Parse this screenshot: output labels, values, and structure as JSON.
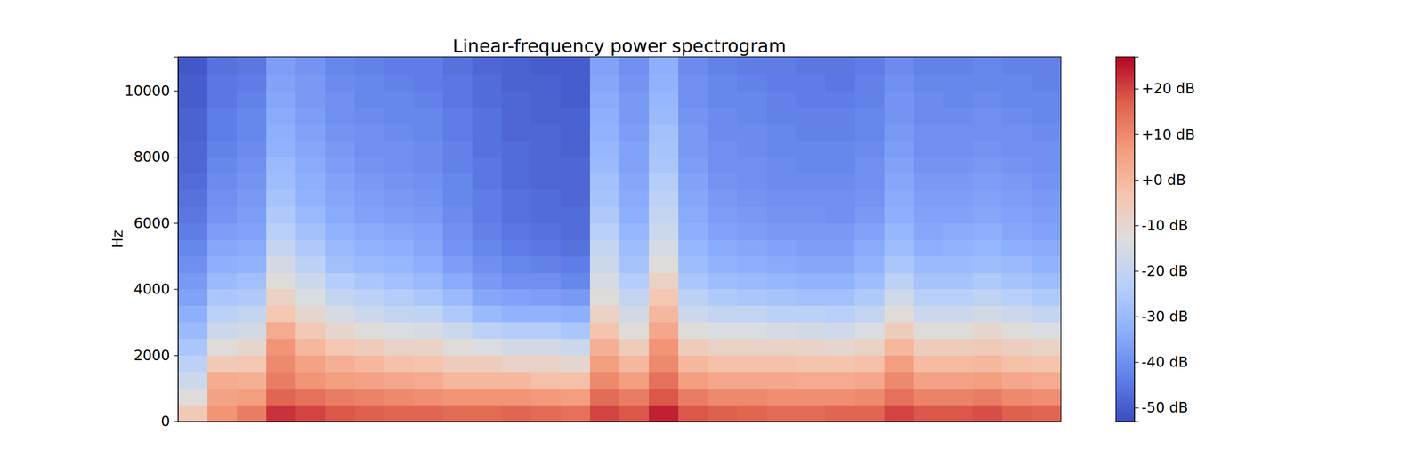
{
  "chart_data": {
    "type": "heatmap",
    "title": "Linear-frequency power spectrogram",
    "y_label": "Hz",
    "xlim": [
      0,
      30
    ],
    "ylim": [
      0,
      11025
    ],
    "yticks": [
      0,
      2000,
      4000,
      6000,
      8000,
      10000
    ],
    "tick_labels": "y",
    "y_bins": [
      0,
      500,
      1000,
      1500,
      2000,
      2500,
      3000,
      3500,
      4000,
      4500,
      5000,
      5500,
      6000,
      6500,
      7000,
      7500,
      8000,
      8500,
      9000,
      9500,
      10000,
      10500,
      11025
    ],
    "color_range": [
      -53,
      27
    ],
    "color_ticks": [
      {
        "value": -50,
        "label": "-50 dB"
      },
      {
        "value": -40,
        "label": "-40 dB"
      },
      {
        "value": -30,
        "label": "-30 dB"
      },
      {
        "value": -20,
        "label": "-20 dB"
      },
      {
        "value": -10,
        "label": "-10 dB"
      },
      {
        "value": 0,
        "label": "+0 dB"
      },
      {
        "value": 10,
        "label": "+10 dB"
      },
      {
        "value": 20,
        "label": "+20 dB"
      }
    ],
    "values": [
      [
        -5,
        -12,
        -18,
        -22,
        -26,
        -30,
        -33,
        -36,
        -38,
        -40,
        -42,
        -44,
        -45,
        -46,
        -47,
        -48,
        -48,
        -49,
        -49,
        -50,
        -50,
        -51
      ],
      [
        8,
        5,
        3,
        -5,
        -12,
        -18,
        -22,
        -26,
        -30,
        -33,
        -35,
        -37,
        -39,
        -40,
        -41,
        -42,
        -43,
        -44,
        -44,
        -45,
        -45,
        -46
      ],
      [
        12,
        6,
        2,
        -4,
        -10,
        -16,
        -20,
        -25,
        -28,
        -32,
        -34,
        -36,
        -37,
        -38,
        -39,
        -40,
        -41,
        -42,
        -42,
        -43,
        -44,
        -45
      ],
      [
        22,
        16,
        12,
        10,
        8,
        3,
        -4,
        -8,
        -12,
        -16,
        -20,
        -23,
        -25,
        -27,
        -29,
        -30,
        -32,
        -33,
        -34,
        -35,
        -36,
        -37
      ],
      [
        20,
        14,
        8,
        5,
        0,
        -5,
        -10,
        -14,
        -18,
        -22,
        -25,
        -28,
        -30,
        -32,
        -33,
        -34,
        -35,
        -36,
        -37,
        -38,
        -38,
        -39
      ],
      [
        18,
        12,
        6,
        2,
        -4,
        -10,
        -15,
        -20,
        -24,
        -28,
        -30,
        -32,
        -34,
        -35,
        -36,
        -37,
        -38,
        -39,
        -40,
        -40,
        -41,
        -42
      ],
      [
        17,
        11,
        5,
        0,
        -6,
        -12,
        -18,
        -22,
        -26,
        -30,
        -32,
        -34,
        -36,
        -37,
        -38,
        -39,
        -40,
        -40,
        -41,
        -42,
        -42,
        -43
      ],
      [
        16,
        10,
        4,
        -2,
        -8,
        -14,
        -20,
        -24,
        -28,
        -31,
        -33,
        -35,
        -37,
        -38,
        -39,
        -40,
        -40,
        -41,
        -42,
        -42,
        -43,
        -44
      ],
      [
        16,
        9,
        3,
        -3,
        -8,
        -15,
        -21,
        -26,
        -30,
        -33,
        -35,
        -36,
        -38,
        -39,
        -40,
        -41,
        -41,
        -42,
        -42,
        -43,
        -44,
        -44
      ],
      [
        15,
        8,
        0,
        -6,
        -12,
        -18,
        -25,
        -30,
        -34,
        -37,
        -39,
        -40,
        -41,
        -42,
        -42,
        -43,
        -43,
        -44,
        -44,
        -45,
        -45,
        -46
      ],
      [
        15,
        8,
        0,
        -6,
        -14,
        -22,
        -30,
        -35,
        -38,
        -40,
        -42,
        -43,
        -44,
        -44,
        -45,
        -45,
        -46,
        -46,
        -46,
        -47,
        -47,
        -48
      ],
      [
        16,
        8,
        0,
        -8,
        -16,
        -24,
        -32,
        -36,
        -40,
        -42,
        -44,
        -45,
        -46,
        -46,
        -47,
        -47,
        -47,
        -48,
        -48,
        -48,
        -49,
        -49
      ],
      [
        15,
        7,
        -2,
        -8,
        -16,
        -24,
        -32,
        -37,
        -40,
        -43,
        -45,
        -46,
        -47,
        -47,
        -48,
        -48,
        -48,
        -48,
        -49,
        -49,
        -49,
        -50
      ],
      [
        14,
        6,
        -2,
        -10,
        -18,
        -26,
        -33,
        -38,
        -42,
        -44,
        -46,
        -47,
        -47,
        -48,
        -48,
        -48,
        -49,
        -49,
        -49,
        -50,
        -50,
        -50
      ],
      [
        20,
        15,
        10,
        6,
        2,
        -3,
        -8,
        -12,
        -15,
        -18,
        -20,
        -23,
        -25,
        -27,
        -28,
        -30,
        -31,
        -32,
        -33,
        -34,
        -35,
        -36
      ],
      [
        18,
        12,
        6,
        0,
        -6,
        -12,
        -16,
        -20,
        -24,
        -27,
        -29,
        -31,
        -33,
        -34,
        -35,
        -36,
        -36,
        -37,
        -38,
        -38,
        -39,
        -40
      ],
      [
        24,
        18,
        14,
        10,
        8,
        4,
        0,
        -4,
        -8,
        -12,
        -15,
        -18,
        -20,
        -22,
        -24,
        -26,
        -27,
        -28,
        -30,
        -31,
        -32,
        -33
      ],
      [
        18,
        12,
        6,
        0,
        -6,
        -12,
        -18,
        -22,
        -26,
        -29,
        -31,
        -33,
        -34,
        -35,
        -36,
        -37,
        -38,
        -38,
        -39,
        -40,
        -40,
        -41
      ],
      [
        17,
        10,
        4,
        -2,
        -8,
        -14,
        -20,
        -25,
        -29,
        -32,
        -34,
        -36,
        -37,
        -38,
        -39,
        -40,
        -40,
        -41,
        -41,
        -42,
        -42,
        -43
      ],
      [
        16,
        10,
        4,
        -2,
        -8,
        -14,
        -20,
        -26,
        -30,
        -33,
        -35,
        -37,
        -38,
        -39,
        -40,
        -40,
        -41,
        -41,
        -42,
        -42,
        -43,
        -44
      ],
      [
        15,
        9,
        4,
        -2,
        -8,
        -15,
        -22,
        -27,
        -31,
        -34,
        -36,
        -38,
        -39,
        -40,
        -41,
        -41,
        -42,
        -42,
        -43,
        -43,
        -44,
        -44
      ],
      [
        15,
        9,
        3,
        -3,
        -9,
        -16,
        -22,
        -28,
        -32,
        -35,
        -37,
        -38,
        -39,
        -40,
        -41,
        -42,
        -42,
        -43,
        -43,
        -44,
        -44,
        -45
      ],
      [
        16,
        9,
        3,
        -3,
        -10,
        -17,
        -23,
        -28,
        -32,
        -35,
        -37,
        -38,
        -40,
        -40,
        -41,
        -42,
        -42,
        -43,
        -43,
        -44,
        -45,
        -45
      ],
      [
        16,
        10,
        4,
        -2,
        -8,
        -14,
        -20,
        -25,
        -29,
        -32,
        -34,
        -36,
        -38,
        -39,
        -40,
        -40,
        -41,
        -42,
        -42,
        -43,
        -43,
        -44
      ],
      [
        20,
        14,
        10,
        6,
        0,
        -6,
        -12,
        -17,
        -22,
        -26,
        -29,
        -31,
        -33,
        -34,
        -35,
        -36,
        -37,
        -38,
        -39,
        -39,
        -40,
        -41
      ],
      [
        18,
        11,
        5,
        -1,
        -6,
        -12,
        -18,
        -23,
        -27,
        -30,
        -33,
        -35,
        -36,
        -37,
        -38,
        -39,
        -40,
        -40,
        -41,
        -41,
        -42,
        -43
      ],
      [
        18,
        11,
        5,
        -1,
        -6,
        -12,
        -18,
        -23,
        -27,
        -30,
        -32,
        -34,
        -36,
        -37,
        -38,
        -39,
        -40,
        -40,
        -41,
        -42,
        -42,
        -43
      ],
      [
        19,
        12,
        6,
        0,
        -5,
        -10,
        -16,
        -21,
        -25,
        -29,
        -31,
        -33,
        -35,
        -36,
        -37,
        -38,
        -39,
        -40,
        -40,
        -41,
        -42,
        -42
      ],
      [
        17,
        10,
        4,
        -2,
        -7,
        -12,
        -18,
        -23,
        -27,
        -30,
        -33,
        -35,
        -36,
        -37,
        -38,
        -39,
        -40,
        -40,
        -41,
        -42,
        -42,
        -43
      ],
      [
        16,
        9,
        3,
        -3,
        -8,
        -14,
        -20,
        -25,
        -29,
        -32,
        -34,
        -36,
        -37,
        -38,
        -39,
        -40,
        -40,
        -41,
        -42,
        -42,
        -43,
        -43
      ]
    ]
  }
}
